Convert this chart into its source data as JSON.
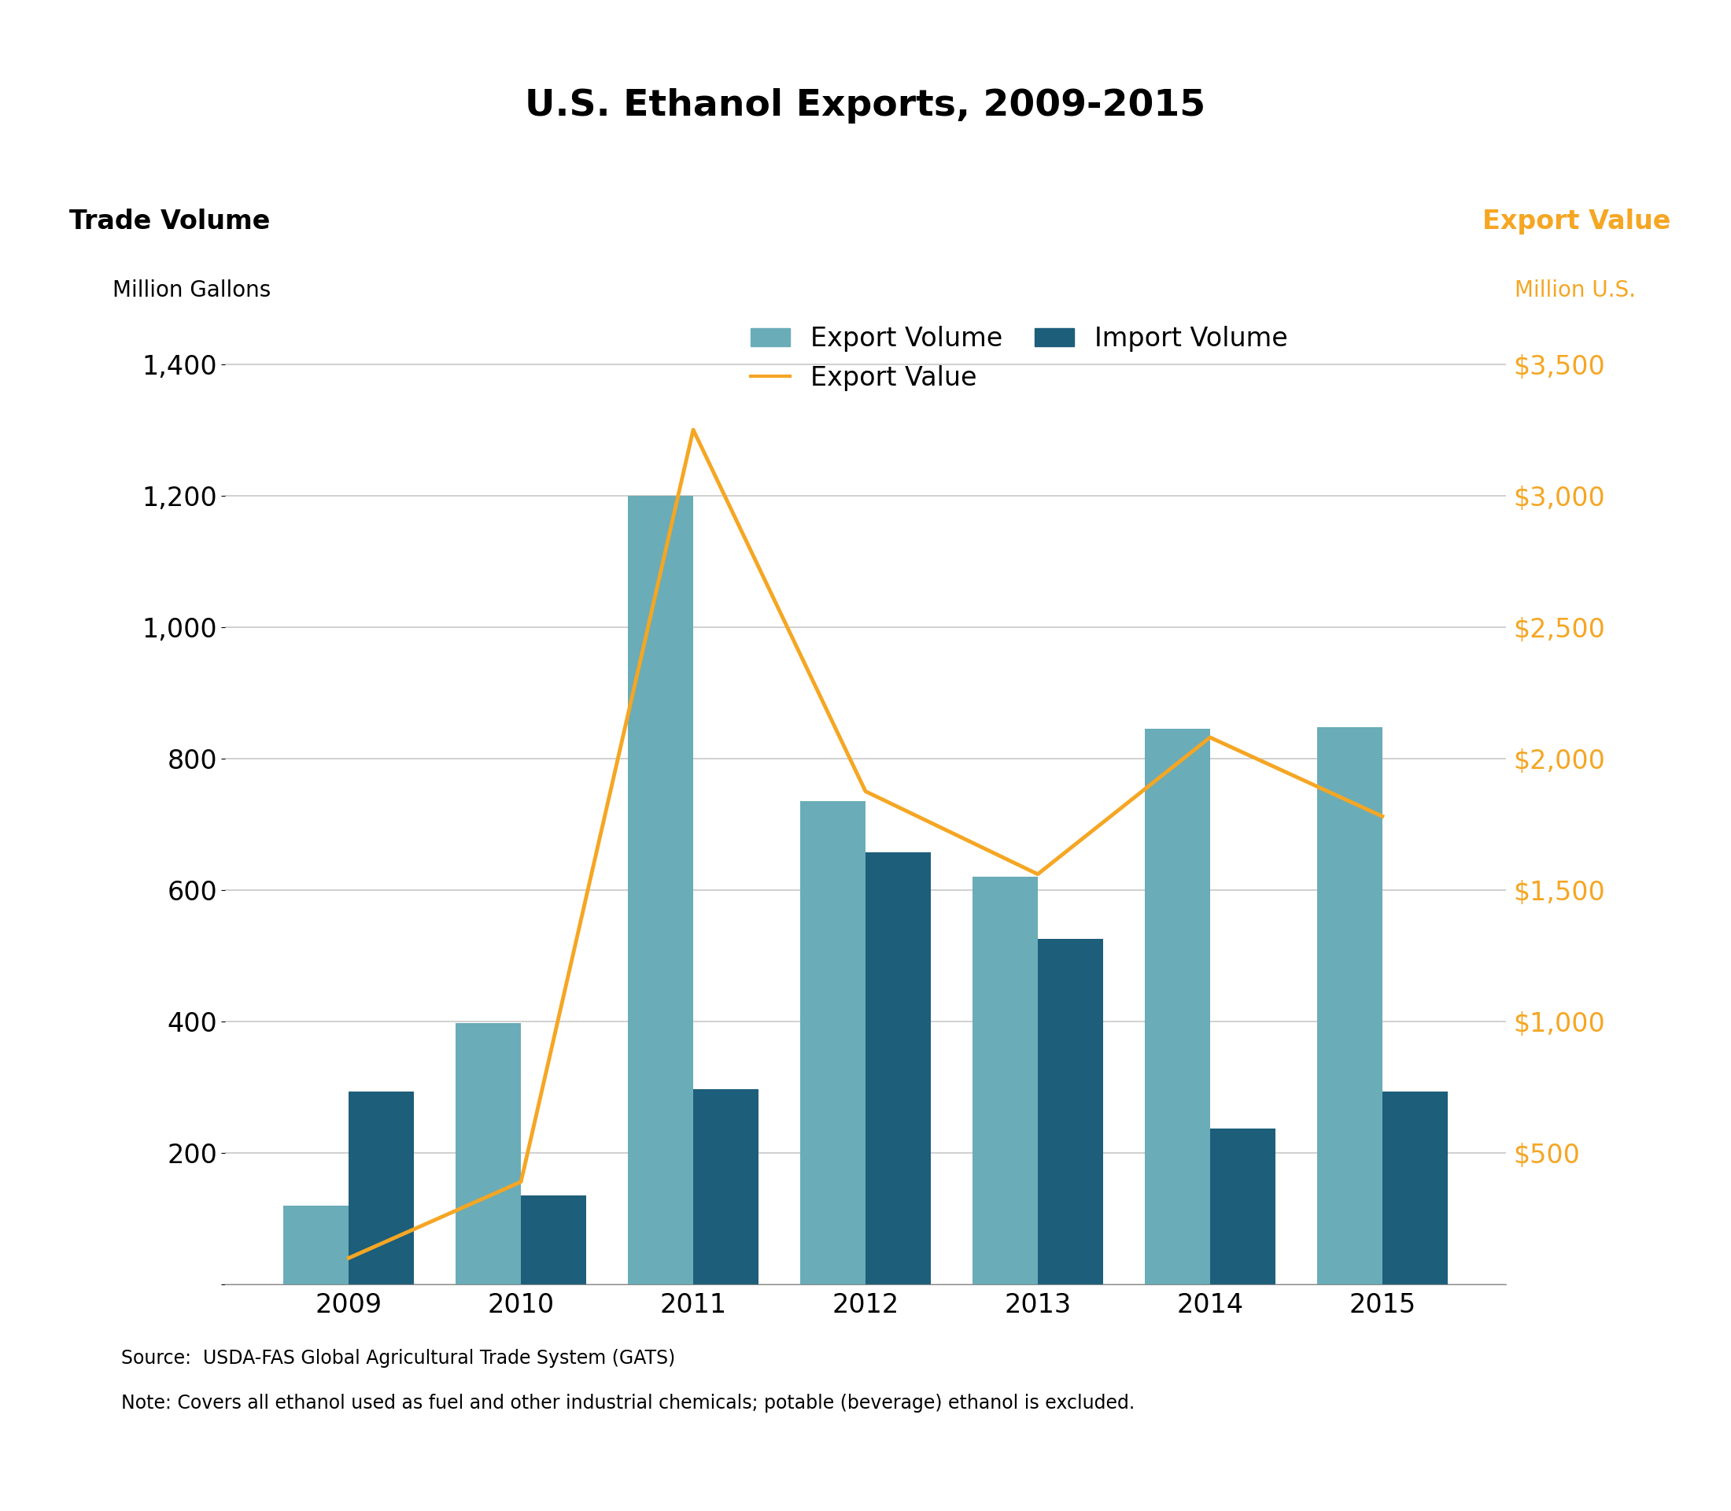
{
  "title": "U.S. Ethanol Exports, 2009-2015",
  "years": [
    2009,
    2010,
    2011,
    2012,
    2013,
    2014,
    2015
  ],
  "export_volume": [
    120,
    397,
    1200,
    735,
    620,
    845,
    848
  ],
  "import_volume": [
    293,
    135,
    297,
    657,
    525,
    237,
    293
  ],
  "export_value": [
    100,
    390,
    3250,
    1875,
    1560,
    2080,
    1780
  ],
  "export_volume_color": "#6aacb8",
  "import_volume_color": "#1d5e7a",
  "export_value_color": "#f5a623",
  "left_ylabel_top": "Trade Volume",
  "left_ylabel_bottom": "Million Gallons",
  "right_ylabel_top": "Export Value",
  "right_ylabel_bottom": "Million U.S.",
  "left_ylim": [
    0,
    1540
  ],
  "right_ylim": [
    0,
    3850
  ],
  "left_yticks": [
    0,
    200,
    400,
    600,
    800,
    1000,
    1200,
    1400
  ],
  "right_yticks": [
    0,
    500,
    1000,
    1500,
    2000,
    2500,
    3000,
    3500
  ],
  "right_ytick_labels": [
    "",
    "$500",
    "$1,000",
    "$1,500",
    "$2,000",
    "$2,500",
    "$3,000",
    "$3,500"
  ],
  "source_text": "Source:  USDA-FAS Global Agricultural Trade System (GATS)",
  "note_text": "Note: Covers all ethanol used as fuel and other industrial chemicals; potable (beverage) ethanol is excluded.",
  "title_fontsize": 34,
  "axis_label_fontsize_large": 24,
  "axis_label_fontsize_small": 20,
  "tick_fontsize": 24,
  "legend_fontsize": 24,
  "footnote_fontsize": 17,
  "background_color": "#ffffff",
  "grid_color": "#c8c8c8",
  "bar_width": 0.38
}
